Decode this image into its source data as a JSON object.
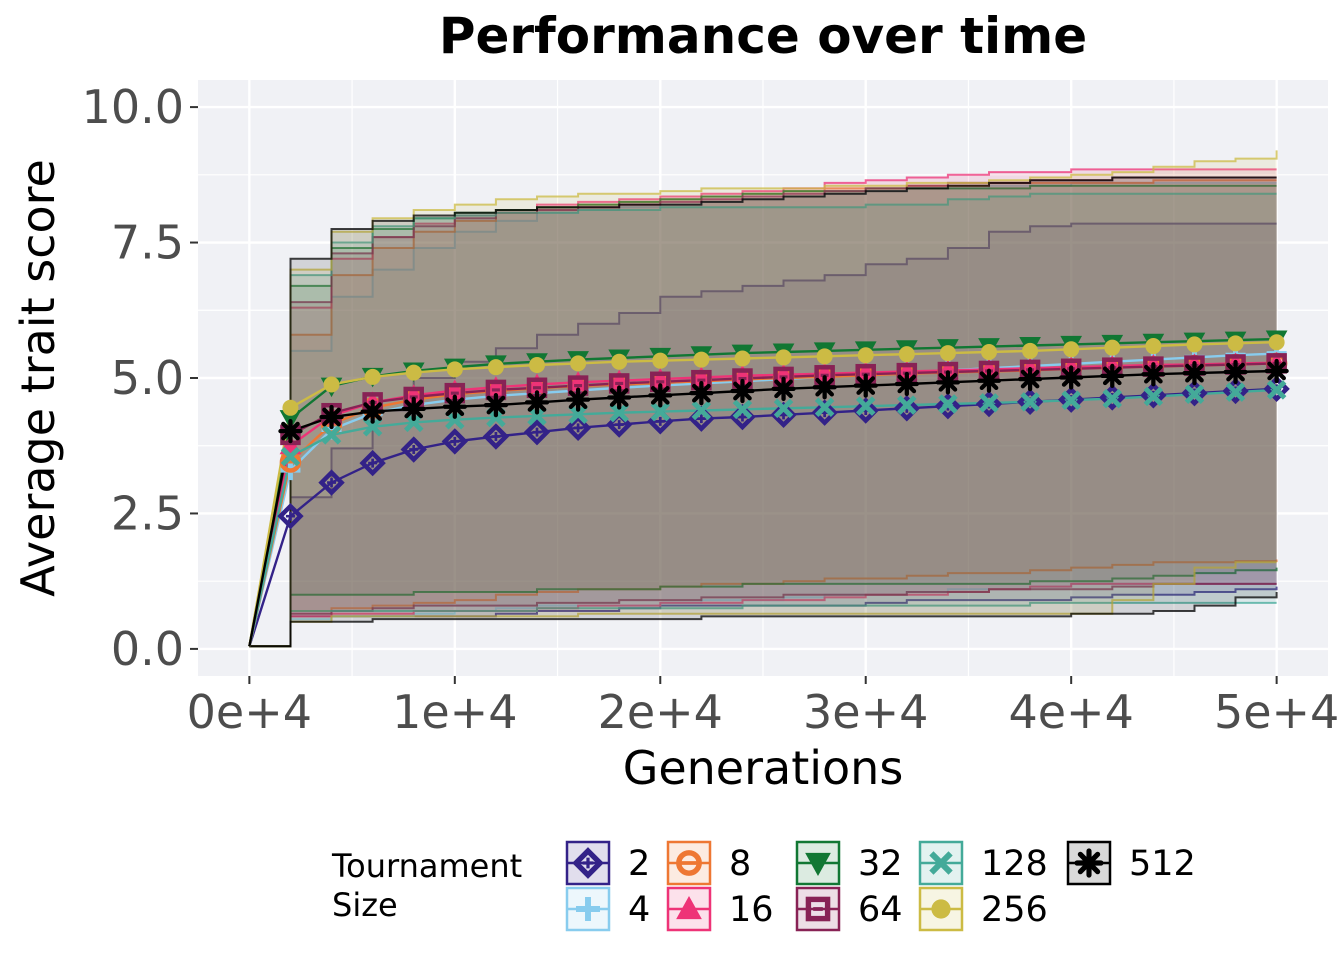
{
  "chart_data": {
    "type": "line",
    "title": "Performance over time",
    "xlabel": "Generations",
    "ylabel": "Average trait score",
    "xlim": [
      -2500,
      52500
    ],
    "ylim": [
      -0.5,
      10.5
    ],
    "x_ticks": [
      0,
      10000,
      20000,
      30000,
      40000,
      50000
    ],
    "x_tick_labels": [
      "0e+4",
      "1e+4",
      "2e+4",
      "3e+4",
      "4e+4",
      "5e+4"
    ],
    "y_ticks": [
      0,
      2.5,
      5,
      7.5,
      10
    ],
    "y_tick_labels": [
      "0.0",
      "2.5",
      "5.0",
      "7.5",
      "10.0"
    ],
    "grid": true,
    "legend": {
      "title_lines": [
        "Tournament",
        "Size"
      ],
      "placement": "bottom"
    },
    "series": [
      {
        "name": "2",
        "color": "#332288",
        "marker": "diamond-plus",
        "x": [
          0,
          2000,
          4000,
          6000,
          8000,
          10000,
          12000,
          14000,
          16000,
          18000,
          20000,
          22000,
          24000,
          26000,
          28000,
          30000,
          32000,
          34000,
          36000,
          38000,
          40000,
          42000,
          44000,
          46000,
          48000,
          50000
        ],
        "y": [
          0.05,
          2.45,
          3.07,
          3.43,
          3.68,
          3.83,
          3.92,
          4.0,
          4.08,
          4.14,
          4.2,
          4.25,
          4.28,
          4.32,
          4.36,
          4.4,
          4.44,
          4.48,
          4.52,
          4.56,
          4.6,
          4.64,
          4.68,
          4.72,
          4.76,
          4.8
        ],
        "upper": [
          0.05,
          2.8,
          3.7,
          4.4,
          5.0,
          5.3,
          5.55,
          5.8,
          6.0,
          6.2,
          6.5,
          6.6,
          6.7,
          6.8,
          6.9,
          7.1,
          7.2,
          7.4,
          7.7,
          7.8,
          7.85,
          7.85,
          7.85,
          7.85,
          7.85,
          7.85
        ],
        "lower": [
          0.05,
          0.6,
          0.6,
          0.6,
          0.6,
          0.6,
          0.65,
          0.7,
          0.7,
          0.75,
          0.8,
          0.8,
          0.8,
          0.8,
          0.8,
          0.85,
          0.9,
          0.9,
          0.9,
          0.9,
          0.95,
          1.0,
          1.0,
          1.05,
          1.1,
          1.15
        ]
      },
      {
        "name": "4",
        "color": "#88ccee",
        "marker": "plus",
        "x": [
          0,
          2000,
          4000,
          6000,
          8000,
          10000,
          12000,
          14000,
          16000,
          18000,
          20000,
          22000,
          24000,
          26000,
          28000,
          30000,
          32000,
          34000,
          36000,
          38000,
          40000,
          42000,
          44000,
          46000,
          48000,
          50000
        ],
        "y": [
          0.05,
          3.3,
          4.05,
          4.35,
          4.5,
          4.6,
          4.67,
          4.72,
          4.77,
          4.82,
          4.86,
          4.9,
          4.94,
          4.98,
          5.02,
          5.06,
          5.1,
          5.14,
          5.18,
          5.22,
          5.26,
          5.3,
          5.34,
          5.38,
          5.42,
          5.45
        ],
        "upper": [
          0.05,
          5.5,
          6.5,
          7.0,
          7.4,
          7.7,
          7.9,
          8.05,
          8.1,
          8.15,
          8.2,
          8.25,
          8.3,
          8.35,
          8.4,
          8.45,
          8.5,
          8.5,
          8.55,
          8.55,
          8.6,
          8.6,
          8.6,
          8.6,
          8.6,
          8.6
        ],
        "lower": [
          0.05,
          0.55,
          0.6,
          0.6,
          0.65,
          0.7,
          0.75,
          0.8,
          0.8,
          0.8,
          0.85,
          0.9,
          0.9,
          0.95,
          1.0,
          1.0,
          1.05,
          1.1,
          1.1,
          1.15,
          1.2,
          1.2,
          1.2,
          1.2,
          1.2,
          1.2
        ]
      },
      {
        "name": "8",
        "color": "#ee7733",
        "marker": "circle-plus",
        "x": [
          0,
          2000,
          4000,
          6000,
          8000,
          10000,
          12000,
          14000,
          16000,
          18000,
          20000,
          22000,
          24000,
          26000,
          28000,
          30000,
          32000,
          34000,
          36000,
          38000,
          40000,
          42000,
          44000,
          46000,
          48000,
          50000
        ],
        "y": [
          0.05,
          3.45,
          4.15,
          4.45,
          4.6,
          4.7,
          4.76,
          4.81,
          4.85,
          4.88,
          4.91,
          4.94,
          4.97,
          5.0,
          5.02,
          5.05,
          5.08,
          5.1,
          5.12,
          5.14,
          5.17,
          5.19,
          5.21,
          5.23,
          5.25,
          5.27
        ],
        "upper": [
          0.05,
          5.8,
          6.9,
          7.4,
          7.7,
          7.9,
          8.05,
          8.15,
          8.2,
          8.25,
          8.3,
          8.35,
          8.4,
          8.45,
          8.5,
          8.5,
          8.55,
          8.55,
          8.6,
          8.6,
          8.6,
          8.6,
          8.65,
          8.65,
          8.65,
          8.65
        ],
        "lower": [
          0.05,
          0.7,
          0.75,
          0.8,
          0.85,
          0.9,
          1.0,
          1.05,
          1.1,
          1.1,
          1.15,
          1.2,
          1.2,
          1.25,
          1.3,
          1.3,
          1.35,
          1.4,
          1.4,
          1.45,
          1.5,
          1.55,
          1.6,
          1.6,
          1.62,
          1.65
        ]
      },
      {
        "name": "16",
        "color": "#ee3377",
        "marker": "triangle-up",
        "x": [
          0,
          2000,
          4000,
          6000,
          8000,
          10000,
          12000,
          14000,
          16000,
          18000,
          20000,
          22000,
          24000,
          26000,
          28000,
          30000,
          32000,
          34000,
          36000,
          38000,
          40000,
          42000,
          44000,
          46000,
          48000,
          50000
        ],
        "y": [
          0.05,
          3.75,
          4.3,
          4.55,
          4.68,
          4.77,
          4.83,
          4.88,
          4.92,
          4.95,
          4.98,
          5.01,
          5.04,
          5.06,
          5.08,
          5.1,
          5.12,
          5.14,
          5.16,
          5.18,
          5.2,
          5.22,
          5.24,
          5.25,
          5.27,
          5.28
        ],
        "upper": [
          0.05,
          6.3,
          7.2,
          7.6,
          7.85,
          8.0,
          8.1,
          8.2,
          8.25,
          8.3,
          8.35,
          8.4,
          8.45,
          8.5,
          8.6,
          8.65,
          8.7,
          8.75,
          8.8,
          8.8,
          8.85,
          8.85,
          8.85,
          8.85,
          8.85,
          8.85
        ],
        "lower": [
          0.05,
          0.6,
          0.65,
          0.65,
          0.7,
          0.7,
          0.7,
          0.75,
          0.8,
          0.8,
          0.85,
          0.85,
          0.9,
          0.9,
          0.95,
          1.0,
          1.0,
          1.05,
          1.1,
          1.15,
          1.2,
          1.2,
          1.2,
          1.2,
          1.2,
          1.2
        ]
      },
      {
        "name": "32",
        "color": "#117733",
        "marker": "triangle-down",
        "x": [
          0,
          2000,
          4000,
          6000,
          8000,
          10000,
          12000,
          14000,
          16000,
          18000,
          20000,
          22000,
          24000,
          26000,
          28000,
          30000,
          32000,
          34000,
          36000,
          38000,
          40000,
          42000,
          44000,
          46000,
          48000,
          50000
        ],
        "y": [
          0.05,
          4.25,
          4.85,
          5.03,
          5.13,
          5.2,
          5.26,
          5.3,
          5.34,
          5.37,
          5.4,
          5.43,
          5.46,
          5.48,
          5.5,
          5.52,
          5.54,
          5.56,
          5.58,
          5.6,
          5.62,
          5.64,
          5.66,
          5.68,
          5.7,
          5.72
        ],
        "upper": [
          0.05,
          6.7,
          7.4,
          7.75,
          7.95,
          8.05,
          8.1,
          8.15,
          8.2,
          8.25,
          8.3,
          8.35,
          8.4,
          8.45,
          8.45,
          8.5,
          8.5,
          8.5,
          8.5,
          8.55,
          8.55,
          8.55,
          8.55,
          8.55,
          8.55,
          8.55
        ],
        "lower": [
          0.05,
          1.0,
          1.0,
          1.0,
          1.05,
          1.05,
          1.05,
          1.1,
          1.1,
          1.1,
          1.15,
          1.15,
          1.2,
          1.2,
          1.2,
          1.2,
          1.2,
          1.2,
          1.2,
          1.25,
          1.25,
          1.3,
          1.35,
          1.4,
          1.45,
          1.5
        ]
      },
      {
        "name": "64",
        "color": "#882255",
        "marker": "square-plus",
        "x": [
          0,
          2000,
          4000,
          6000,
          8000,
          10000,
          12000,
          14000,
          16000,
          18000,
          20000,
          22000,
          24000,
          26000,
          28000,
          30000,
          32000,
          34000,
          36000,
          38000,
          40000,
          42000,
          44000,
          46000,
          48000,
          50000
        ],
        "y": [
          0.05,
          3.95,
          4.35,
          4.55,
          4.65,
          4.72,
          4.78,
          4.82,
          4.86,
          4.9,
          4.93,
          4.96,
          4.99,
          5.02,
          5.05,
          5.07,
          5.09,
          5.11,
          5.13,
          5.15,
          5.17,
          5.19,
          5.21,
          5.23,
          5.25,
          5.27
        ],
        "upper": [
          0.05,
          6.4,
          7.3,
          7.6,
          7.8,
          7.95,
          8.05,
          8.1,
          8.15,
          8.2,
          8.25,
          8.3,
          8.35,
          8.4,
          8.45,
          8.5,
          8.55,
          8.6,
          8.6,
          8.65,
          8.65,
          8.7,
          8.7,
          8.7,
          8.7,
          8.7
        ],
        "lower": [
          0.05,
          0.65,
          0.7,
          0.75,
          0.8,
          0.8,
          0.8,
          0.85,
          0.85,
          0.9,
          0.9,
          0.95,
          0.95,
          1.0,
          1.0,
          1.0,
          1.05,
          1.05,
          1.1,
          1.1,
          1.1,
          1.15,
          1.2,
          1.2,
          1.2,
          1.2
        ]
      },
      {
        "name": "128",
        "color": "#44aa99",
        "marker": "cross",
        "x": [
          0,
          2000,
          4000,
          6000,
          8000,
          10000,
          12000,
          14000,
          16000,
          18000,
          20000,
          22000,
          24000,
          26000,
          28000,
          30000,
          32000,
          34000,
          36000,
          38000,
          40000,
          42000,
          44000,
          46000,
          48000,
          50000
        ],
        "y": [
          0.05,
          3.55,
          3.95,
          4.1,
          4.18,
          4.23,
          4.27,
          4.3,
          4.33,
          4.36,
          4.38,
          4.4,
          4.42,
          4.44,
          4.46,
          4.48,
          4.5,
          4.52,
          4.54,
          4.56,
          4.59,
          4.62,
          4.66,
          4.7,
          4.74,
          4.78
        ],
        "upper": [
          0.05,
          6.9,
          7.5,
          7.8,
          7.95,
          8.0,
          8.05,
          8.05,
          8.1,
          8.1,
          8.15,
          8.15,
          8.15,
          8.15,
          8.15,
          8.2,
          8.2,
          8.3,
          8.35,
          8.4,
          8.4,
          8.4,
          8.4,
          8.4,
          8.4,
          8.4
        ],
        "lower": [
          0.05,
          0.7,
          0.7,
          0.7,
          0.7,
          0.7,
          0.7,
          0.75,
          0.75,
          0.75,
          0.75,
          0.75,
          0.8,
          0.8,
          0.8,
          0.8,
          0.8,
          0.8,
          0.8,
          0.85,
          0.85,
          0.85,
          0.85,
          0.85,
          0.85,
          0.85
        ]
      },
      {
        "name": "256",
        "color": "#ccbb44",
        "marker": "dot",
        "x": [
          0,
          2000,
          4000,
          6000,
          8000,
          10000,
          12000,
          14000,
          16000,
          18000,
          20000,
          22000,
          24000,
          26000,
          28000,
          30000,
          32000,
          34000,
          36000,
          38000,
          40000,
          42000,
          44000,
          46000,
          48000,
          50000
        ],
        "y": [
          0.05,
          4.45,
          4.88,
          5.02,
          5.1,
          5.16,
          5.2,
          5.24,
          5.27,
          5.3,
          5.32,
          5.34,
          5.36,
          5.38,
          5.4,
          5.42,
          5.44,
          5.46,
          5.48,
          5.5,
          5.53,
          5.56,
          5.59,
          5.62,
          5.64,
          5.66
        ],
        "upper": [
          0.05,
          7.0,
          7.7,
          7.95,
          8.1,
          8.2,
          8.3,
          8.35,
          8.4,
          8.4,
          8.45,
          8.5,
          8.5,
          8.5,
          8.55,
          8.55,
          8.6,
          8.6,
          8.65,
          8.7,
          8.75,
          8.8,
          8.9,
          9.0,
          9.05,
          9.2
        ],
        "lower": [
          0.05,
          0.5,
          0.6,
          0.6,
          0.6,
          0.6,
          0.6,
          0.6,
          0.65,
          0.65,
          0.65,
          0.65,
          0.65,
          0.65,
          0.65,
          0.65,
          0.65,
          0.65,
          0.65,
          0.65,
          0.65,
          0.9,
          1.2,
          1.5,
          1.6,
          1.6
        ]
      },
      {
        "name": "512",
        "color": "#000000",
        "marker": "asterisk",
        "x": [
          0,
          2000,
          4000,
          6000,
          8000,
          10000,
          12000,
          14000,
          16000,
          18000,
          20000,
          22000,
          24000,
          26000,
          28000,
          30000,
          32000,
          34000,
          36000,
          38000,
          40000,
          42000,
          44000,
          46000,
          48000,
          50000
        ],
        "y": [
          0.05,
          4.02,
          4.28,
          4.38,
          4.43,
          4.47,
          4.5,
          4.55,
          4.6,
          4.64,
          4.68,
          4.72,
          4.76,
          4.8,
          4.83,
          4.86,
          4.89,
          4.92,
          4.95,
          4.98,
          5.01,
          5.04,
          5.07,
          5.09,
          5.11,
          5.13
        ],
        "upper": [
          0.05,
          7.2,
          7.75,
          7.9,
          8.0,
          8.05,
          8.1,
          8.15,
          8.15,
          8.2,
          8.2,
          8.25,
          8.3,
          8.35,
          8.4,
          8.45,
          8.5,
          8.55,
          8.6,
          8.65,
          8.65,
          8.7,
          8.7,
          8.7,
          8.7,
          8.7
        ],
        "lower": [
          0.05,
          0.5,
          0.5,
          0.55,
          0.55,
          0.55,
          0.55,
          0.55,
          0.55,
          0.55,
          0.55,
          0.6,
          0.6,
          0.6,
          0.6,
          0.6,
          0.6,
          0.6,
          0.6,
          0.6,
          0.65,
          0.65,
          0.7,
          0.8,
          0.95,
          1.05
        ]
      }
    ]
  }
}
